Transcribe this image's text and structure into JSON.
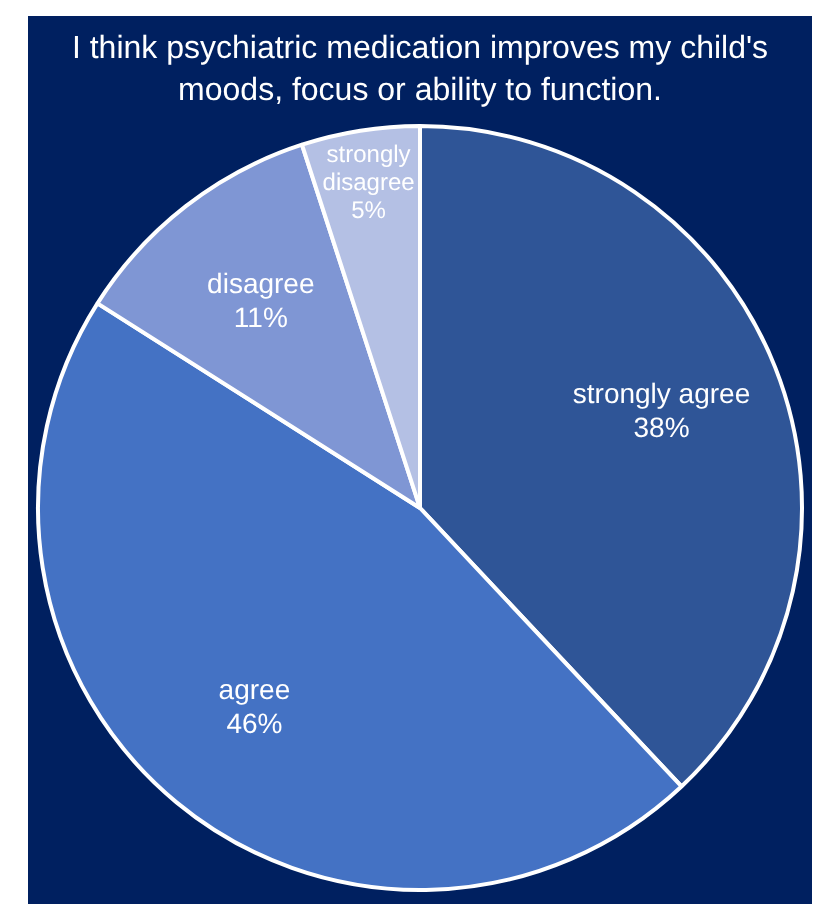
{
  "chart_data": {
    "type": "pie",
    "title": "I think psychiatric medication improves my child's moods, focus or ability to function.",
    "categories": [
      "strongly agree",
      "agree",
      "disagree",
      "strongly disagree"
    ],
    "values": [
      38,
      46,
      11,
      5
    ],
    "value_labels": [
      "38%",
      "46%",
      "11%",
      "5%"
    ],
    "colors": [
      "#2f5597",
      "#4472c4",
      "#7f96d4",
      "#b4c0e4"
    ],
    "legend": false
  }
}
